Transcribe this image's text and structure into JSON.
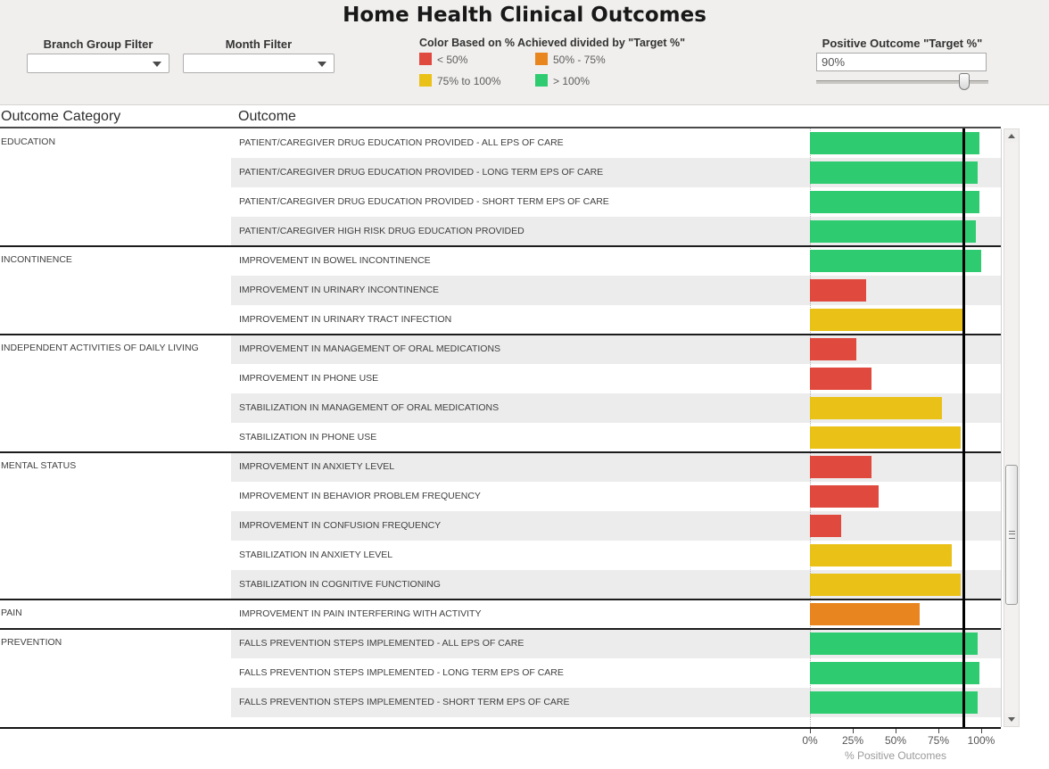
{
  "title": "Home Health Clinical Outcomes",
  "filters": {
    "branch_group": {
      "label": "Branch Group Filter",
      "selected": ""
    },
    "month": {
      "label": "Month Filter",
      "selected": ""
    }
  },
  "target_control": {
    "label": "Positive Outcome \"Target %\"",
    "value": "90%",
    "slider_percent": 86
  },
  "legend": {
    "title": "Color Based on % Achieved divided by \"Target %\"",
    "items": [
      {
        "label": "< 50%",
        "color": "#E0493E"
      },
      {
        "label": "50% - 75%",
        "color": "#E8851F"
      },
      {
        "label": "75% to 100%",
        "color": "#EAC117"
      },
      {
        "label": "> 100%",
        "color": "#2FCB70"
      }
    ]
  },
  "table": {
    "category_header": "Outcome Category",
    "outcome_header": "Outcome"
  },
  "icons": {
    "dropdown_arrow": "▼",
    "scroll_up_arrow": "▲",
    "scroll_down_arrow": "▼"
  },
  "chart_data": {
    "type": "bar",
    "orientation": "horizontal",
    "x_axis": {
      "label": "% Positive Outcomes",
      "ticks": [
        "0%",
        "25%",
        "50%",
        "75%",
        "100%"
      ],
      "range": [
        0,
        100
      ]
    },
    "reference_line_percent": 90,
    "groups": [
      {
        "category": "EDUCATION",
        "rows": [
          {
            "outcome": "PATIENT/CAREGIVER DRUG EDUCATION PROVIDED - ALL EPS OF CARE",
            "value": 99,
            "tier": "> 100%"
          },
          {
            "outcome": "PATIENT/CAREGIVER DRUG EDUCATION PROVIDED - LONG TERM EPS OF CARE",
            "value": 98,
            "tier": "> 100%"
          },
          {
            "outcome": "PATIENT/CAREGIVER DRUG EDUCATION PROVIDED - SHORT TERM EPS OF CARE",
            "value": 99,
            "tier": "> 100%"
          },
          {
            "outcome": "PATIENT/CAREGIVER HIGH RISK DRUG EDUCATION PROVIDED",
            "value": 97,
            "tier": "> 100%"
          }
        ]
      },
      {
        "category": "INCONTINENCE",
        "rows": [
          {
            "outcome": "IMPROVEMENT IN BOWEL INCONTINENCE",
            "value": 100,
            "tier": "> 100%"
          },
          {
            "outcome": "IMPROVEMENT IN URINARY INCONTINENCE",
            "value": 33,
            "tier": "< 50%"
          },
          {
            "outcome": "IMPROVEMENT IN URINARY TRACT INFECTION",
            "value": 89,
            "tier": "75% to 100%"
          }
        ]
      },
      {
        "category": "INDEPENDENT ACTIVITIES OF DAILY LIVING",
        "rows": [
          {
            "outcome": "IMPROVEMENT IN MANAGEMENT OF ORAL MEDICATIONS",
            "value": 27,
            "tier": "< 50%"
          },
          {
            "outcome": "IMPROVEMENT IN PHONE USE",
            "value": 36,
            "tier": "< 50%"
          },
          {
            "outcome": "STABILIZATION IN MANAGEMENT OF ORAL MEDICATIONS",
            "value": 77,
            "tier": "75% to 100%"
          },
          {
            "outcome": "STABILIZATION IN PHONE USE",
            "value": 88,
            "tier": "75% to 100%"
          }
        ]
      },
      {
        "category": "MENTAL STATUS",
        "rows": [
          {
            "outcome": "IMPROVEMENT IN ANXIETY LEVEL",
            "value": 36,
            "tier": "< 50%"
          },
          {
            "outcome": "IMPROVEMENT IN BEHAVIOR PROBLEM FREQUENCY",
            "value": 40,
            "tier": "< 50%"
          },
          {
            "outcome": "IMPROVEMENT IN CONFUSION FREQUENCY",
            "value": 18,
            "tier": "< 50%"
          },
          {
            "outcome": "STABILIZATION IN ANXIETY LEVEL",
            "value": 83,
            "tier": "75% to 100%"
          },
          {
            "outcome": "STABILIZATION IN COGNITIVE FUNCTIONING",
            "value": 88,
            "tier": "75% to 100%"
          }
        ]
      },
      {
        "category": "PAIN",
        "rows": [
          {
            "outcome": "IMPROVEMENT IN PAIN INTERFERING WITH ACTIVITY",
            "value": 64,
            "tier": "50% - 75%"
          }
        ]
      },
      {
        "category": "PREVENTION",
        "rows": [
          {
            "outcome": "FALLS PREVENTION STEPS IMPLEMENTED - ALL EPS OF CARE",
            "value": 98,
            "tier": "> 100%"
          },
          {
            "outcome": "FALLS PREVENTION STEPS IMPLEMENTED - LONG TERM EPS OF CARE",
            "value": 99,
            "tier": "> 100%"
          },
          {
            "outcome": "FALLS PREVENTION STEPS IMPLEMENTED - SHORT TERM EPS OF CARE",
            "value": 98,
            "tier": "> 100%"
          }
        ]
      }
    ]
  }
}
